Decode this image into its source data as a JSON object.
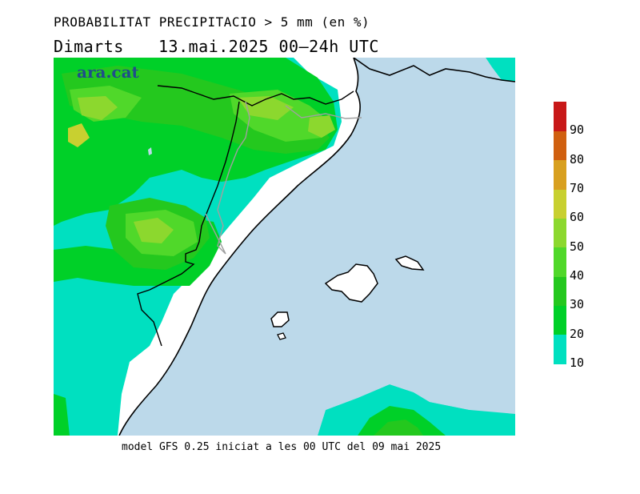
{
  "header": {
    "title": "PROBABILITAT PRECIPITACIO > 5 mm (en %)",
    "day": "Dimarts",
    "date": "13.mai.2025 00—24h UTC"
  },
  "logo": {
    "text": "ara.cat",
    "color": "#1f4d8a"
  },
  "footer": {
    "model_note": "model GFS 0.25 iniciat a les 00 UTC del 09 mai 2025"
  },
  "map": {
    "sea_color": "#bcd9ea",
    "land_color": "#ffffff",
    "border_color": "#000000",
    "region_border_color": "#a0a0a0"
  },
  "legend": {
    "unit": "%",
    "ticks": [
      "90",
      "80",
      "70",
      "60",
      "50",
      "40",
      "30",
      "20",
      "10"
    ],
    "bins": [
      {
        "range": "10-20",
        "color": "#00e0c0"
      },
      {
        "range": "20-30",
        "color": "#00d028"
      },
      {
        "range": "30-40",
        "color": "#24c81e"
      },
      {
        "range": "40-50",
        "color": "#50d82a"
      },
      {
        "range": "50-60",
        "color": "#8cd82e"
      },
      {
        "range": "60-70",
        "color": "#c8d030"
      },
      {
        "range": "70-80",
        "color": "#d8a020"
      },
      {
        "range": "80-90",
        "color": "#d06010"
      },
      {
        "range": "90-100",
        "color": "#c81818"
      }
    ]
  }
}
